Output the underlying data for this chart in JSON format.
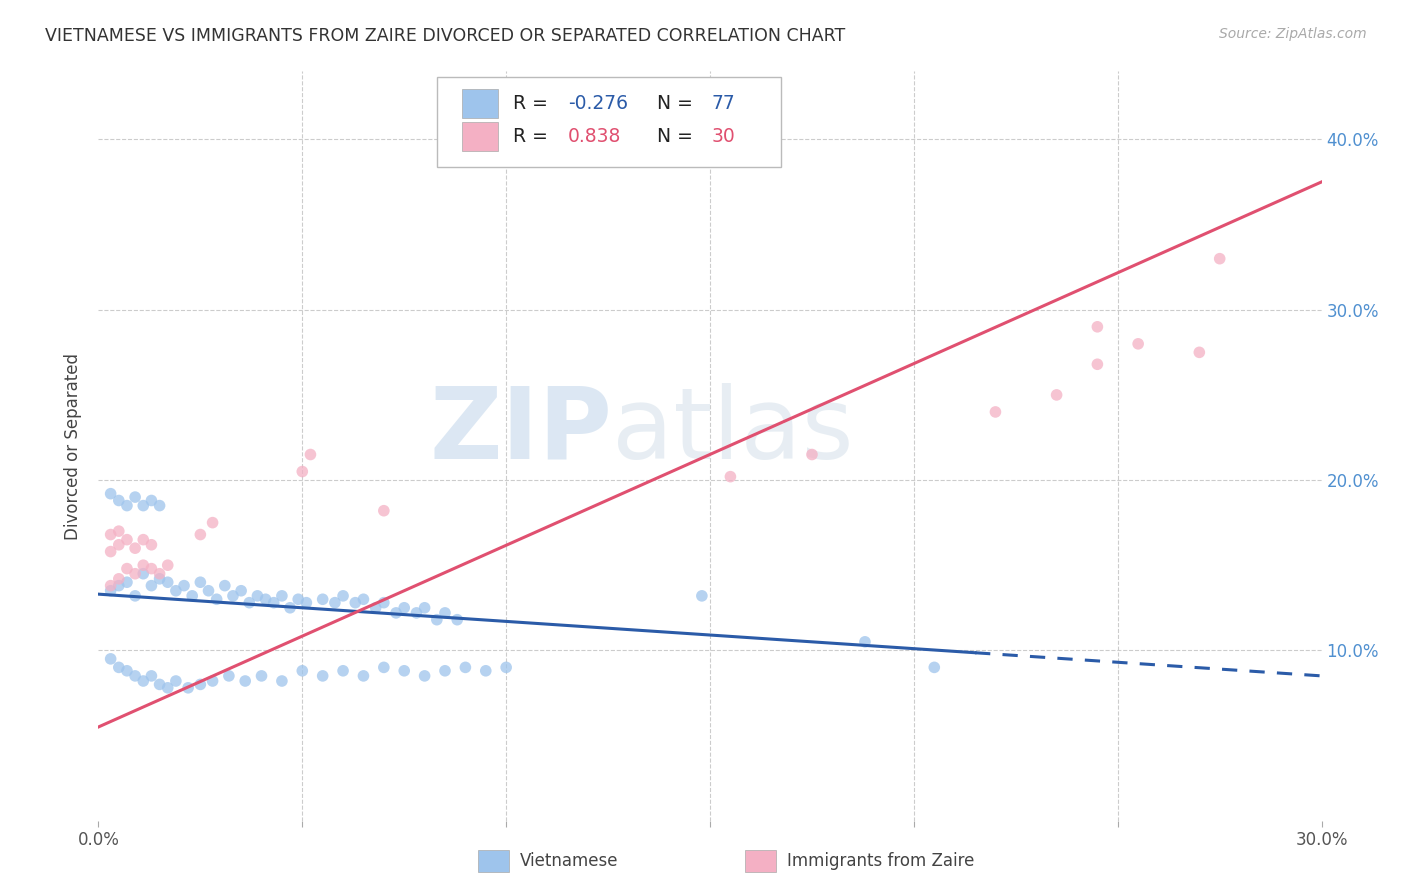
{
  "title": "VIETNAMESE VS IMMIGRANTS FROM ZAIRE DIVORCED OR SEPARATED CORRELATION CHART",
  "source": "Source: ZipAtlas.com",
  "ylabel": "Divorced or Separated",
  "xlim": [
    0.0,
    0.3
  ],
  "ylim": [
    0.0,
    0.44
  ],
  "yticks": [
    0.1,
    0.2,
    0.3,
    0.4
  ],
  "ytick_labels": [
    "10.0%",
    "20.0%",
    "30.0%",
    "40.0%"
  ],
  "xticks": [
    0.0,
    0.05,
    0.1,
    0.15,
    0.2,
    0.25,
    0.3
  ],
  "blue_color": "#9EC4EC",
  "pink_color": "#F4B0C4",
  "blue_line_color": "#2B5BA8",
  "pink_line_color": "#E05070",
  "tick_color": "#5090D0",
  "blue_line_solid_end": 0.215,
  "blue_intercept": 0.133,
  "blue_slope": -0.16,
  "pink_intercept": 0.055,
  "pink_slope": 1.067,
  "blue_scatter": [
    [
      0.003,
      0.135
    ],
    [
      0.005,
      0.138
    ],
    [
      0.007,
      0.14
    ],
    [
      0.009,
      0.132
    ],
    [
      0.011,
      0.145
    ],
    [
      0.013,
      0.138
    ],
    [
      0.015,
      0.142
    ],
    [
      0.017,
      0.14
    ],
    [
      0.019,
      0.135
    ],
    [
      0.021,
      0.138
    ],
    [
      0.023,
      0.132
    ],
    [
      0.025,
      0.14
    ],
    [
      0.027,
      0.135
    ],
    [
      0.029,
      0.13
    ],
    [
      0.031,
      0.138
    ],
    [
      0.033,
      0.132
    ],
    [
      0.035,
      0.135
    ],
    [
      0.037,
      0.128
    ],
    [
      0.039,
      0.132
    ],
    [
      0.041,
      0.13
    ],
    [
      0.043,
      0.128
    ],
    [
      0.045,
      0.132
    ],
    [
      0.047,
      0.125
    ],
    [
      0.049,
      0.13
    ],
    [
      0.051,
      0.128
    ],
    [
      0.055,
      0.13
    ],
    [
      0.058,
      0.128
    ],
    [
      0.06,
      0.132
    ],
    [
      0.063,
      0.128
    ],
    [
      0.065,
      0.13
    ],
    [
      0.068,
      0.125
    ],
    [
      0.07,
      0.128
    ],
    [
      0.073,
      0.122
    ],
    [
      0.075,
      0.125
    ],
    [
      0.078,
      0.122
    ],
    [
      0.08,
      0.125
    ],
    [
      0.083,
      0.118
    ],
    [
      0.085,
      0.122
    ],
    [
      0.088,
      0.118
    ],
    [
      0.003,
      0.192
    ],
    [
      0.005,
      0.188
    ],
    [
      0.007,
      0.185
    ],
    [
      0.009,
      0.19
    ],
    [
      0.011,
      0.185
    ],
    [
      0.013,
      0.188
    ],
    [
      0.015,
      0.185
    ],
    [
      0.003,
      0.095
    ],
    [
      0.005,
      0.09
    ],
    [
      0.007,
      0.088
    ],
    [
      0.009,
      0.085
    ],
    [
      0.011,
      0.082
    ],
    [
      0.013,
      0.085
    ],
    [
      0.015,
      0.08
    ],
    [
      0.017,
      0.078
    ],
    [
      0.019,
      0.082
    ],
    [
      0.022,
      0.078
    ],
    [
      0.025,
      0.08
    ],
    [
      0.028,
      0.082
    ],
    [
      0.032,
      0.085
    ],
    [
      0.036,
      0.082
    ],
    [
      0.04,
      0.085
    ],
    [
      0.045,
      0.082
    ],
    [
      0.05,
      0.088
    ],
    [
      0.055,
      0.085
    ],
    [
      0.06,
      0.088
    ],
    [
      0.065,
      0.085
    ],
    [
      0.07,
      0.09
    ],
    [
      0.075,
      0.088
    ],
    [
      0.08,
      0.085
    ],
    [
      0.085,
      0.088
    ],
    [
      0.09,
      0.09
    ],
    [
      0.095,
      0.088
    ],
    [
      0.1,
      0.09
    ],
    [
      0.148,
      0.132
    ],
    [
      0.188,
      0.105
    ],
    [
      0.205,
      0.09
    ]
  ],
  "pink_scatter": [
    [
      0.003,
      0.138
    ],
    [
      0.005,
      0.142
    ],
    [
      0.007,
      0.148
    ],
    [
      0.009,
      0.145
    ],
    [
      0.011,
      0.15
    ],
    [
      0.013,
      0.148
    ],
    [
      0.015,
      0.145
    ],
    [
      0.017,
      0.15
    ],
    [
      0.003,
      0.158
    ],
    [
      0.005,
      0.162
    ],
    [
      0.007,
      0.165
    ],
    [
      0.009,
      0.16
    ],
    [
      0.011,
      0.165
    ],
    [
      0.013,
      0.162
    ],
    [
      0.003,
      0.168
    ],
    [
      0.005,
      0.17
    ],
    [
      0.025,
      0.168
    ],
    [
      0.028,
      0.175
    ],
    [
      0.05,
      0.205
    ],
    [
      0.052,
      0.215
    ],
    [
      0.07,
      0.182
    ],
    [
      0.155,
      0.202
    ],
    [
      0.175,
      0.215
    ],
    [
      0.22,
      0.24
    ],
    [
      0.235,
      0.25
    ],
    [
      0.245,
      0.268
    ],
    [
      0.255,
      0.28
    ],
    [
      0.245,
      0.29
    ],
    [
      0.27,
      0.275
    ],
    [
      0.275,
      0.33
    ]
  ],
  "watermark_zip": "ZIP",
  "watermark_atlas": "atlas",
  "background_color": "#FFFFFF",
  "grid_color": "#CCCCCC"
}
